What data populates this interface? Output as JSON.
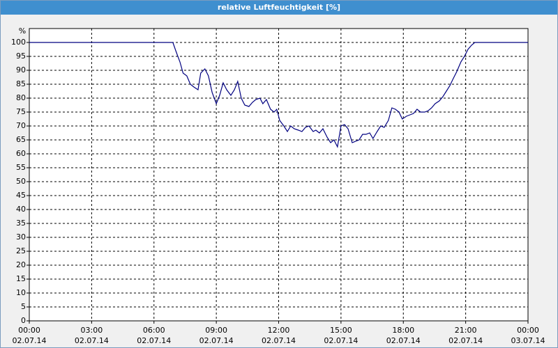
{
  "chart_data": {
    "type": "line",
    "title": "relative Luftfeuchtigkeit [%]",
    "y_label": "%",
    "color": "#000080",
    "grid": true,
    "ylim": [
      0,
      105
    ],
    "yticks": [
      0,
      5,
      10,
      15,
      20,
      25,
      30,
      35,
      40,
      45,
      50,
      55,
      60,
      65,
      70,
      75,
      80,
      85,
      90,
      95,
      100
    ],
    "xlim": [
      0,
      24
    ],
    "xticks": [
      {
        "value": 0,
        "label": "00:00"
      },
      {
        "value": 3,
        "label": "03:00"
      },
      {
        "value": 6,
        "label": "06:00"
      },
      {
        "value": 9,
        "label": "09:00"
      },
      {
        "value": 12,
        "label": "12:00"
      },
      {
        "value": 15,
        "label": "15:00"
      },
      {
        "value": 18,
        "label": "18:00"
      },
      {
        "value": 21,
        "label": "21:00"
      },
      {
        "value": 24,
        "label": "00:00"
      }
    ],
    "xtick_dates": [
      "02.07.14",
      "02.07.14",
      "02.07.14",
      "02.07.14",
      "02.07.14",
      "02.07.14",
      "02.07.14",
      "02.07.14",
      "03.07.14"
    ],
    "x": [
      0,
      6.91,
      7.05,
      7.25,
      7.4,
      7.58,
      7.75,
      7.92,
      8.12,
      8.25,
      8.45,
      8.62,
      8.8,
      9.0,
      9.16,
      9.33,
      9.5,
      9.7,
      9.87,
      10.03,
      10.2,
      10.37,
      10.57,
      10.74,
      10.9,
      11.1,
      11.24,
      11.41,
      11.61,
      11.78,
      11.91,
      12.05,
      12.25,
      12.42,
      12.58,
      12.75,
      12.95,
      13.12,
      13.29,
      13.46,
      13.66,
      13.79,
      13.96,
      14.13,
      14.33,
      14.5,
      14.66,
      14.83,
      15.0,
      15.17,
      15.34,
      15.54,
      15.7,
      15.87,
      16.04,
      16.2,
      16.38,
      16.54,
      16.74,
      16.91,
      17.08,
      17.28,
      17.45,
      17.62,
      17.79,
      17.95,
      18.15,
      18.32,
      18.49,
      18.66,
      18.83,
      19.03,
      19.2,
      19.36,
      19.53,
      19.73,
      19.9,
      20.07,
      20.24,
      20.4,
      20.57,
      20.77,
      20.94,
      21.11,
      21.28,
      21.44,
      24
    ],
    "values": [
      100,
      100,
      97,
      93,
      89,
      88,
      85,
      84,
      83,
      89,
      90.5,
      88,
      82,
      78,
      81,
      85.5,
      83,
      81,
      83,
      86,
      80,
      77.5,
      77,
      78.5,
      79.5,
      80,
      78,
      79.5,
      76,
      75,
      76,
      72,
      70,
      68,
      70,
      69,
      68.5,
      68,
      69.5,
      70,
      68,
      68.5,
      67.5,
      69,
      66,
      64,
      65,
      62.5,
      70,
      70.5,
      69,
      64,
      64.5,
      65,
      67,
      67,
      67.5,
      65.5,
      68,
      70,
      69.5,
      72,
      76.5,
      76,
      75,
      72.5,
      73.5,
      74,
      74.5,
      76,
      75,
      75,
      75.5,
      76.5,
      78,
      79,
      80.5,
      82.5,
      84.5,
      87,
      89.5,
      93,
      95,
      97.5,
      99,
      100,
      100
    ]
  }
}
